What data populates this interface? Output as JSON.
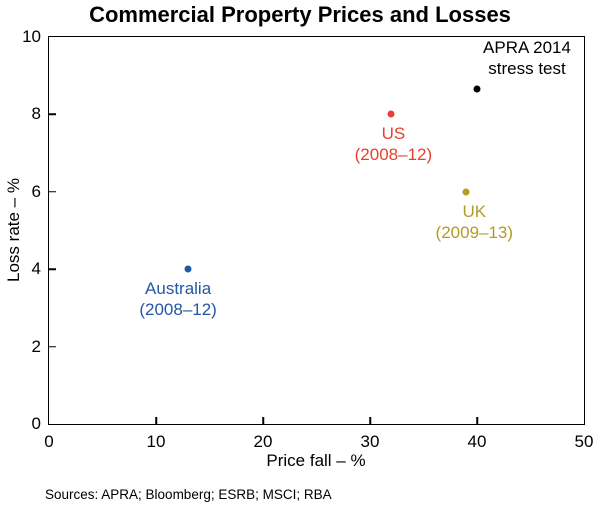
{
  "source": "Sources: APRA; Bloomberg; ESRB; MSCI; RBA",
  "chart_data": {
    "type": "scatter",
    "title": "Commercial Property Prices and Losses",
    "xlabel": "Price fall – %",
    "ylabel": "Loss rate – %",
    "xlim": [
      0,
      50
    ],
    "ylim": [
      0,
      10
    ],
    "x_ticks": [
      0,
      10,
      20,
      30,
      40,
      50
    ],
    "y_ticks": [
      0,
      2,
      4,
      6,
      8,
      10
    ],
    "grid": false,
    "legend": "none",
    "points": [
      {
        "id": "australia",
        "label_lines": [
          "Australia",
          "(2008–12)"
        ],
        "x": 13,
        "y": 4,
        "color": "#2456a5",
        "label_position": "below",
        "label_dx": -10
      },
      {
        "id": "us",
        "label_lines": [
          "US",
          "(2008–12)"
        ],
        "x": 32,
        "y": 8,
        "color": "#e8402f",
        "label_position": "below",
        "label_dx": 2
      },
      {
        "id": "uk",
        "label_lines": [
          "UK",
          "(2009–13)"
        ],
        "x": 39,
        "y": 6,
        "color": "#b49b26",
        "label_position": "below",
        "label_dx": 8
      },
      {
        "id": "apra-stress-test",
        "label_lines": [
          "APRA 2014",
          "stress test"
        ],
        "x": 40,
        "y": 8.65,
        "color": "#000000",
        "label_position": "above",
        "label_dx": 50
      }
    ]
  }
}
